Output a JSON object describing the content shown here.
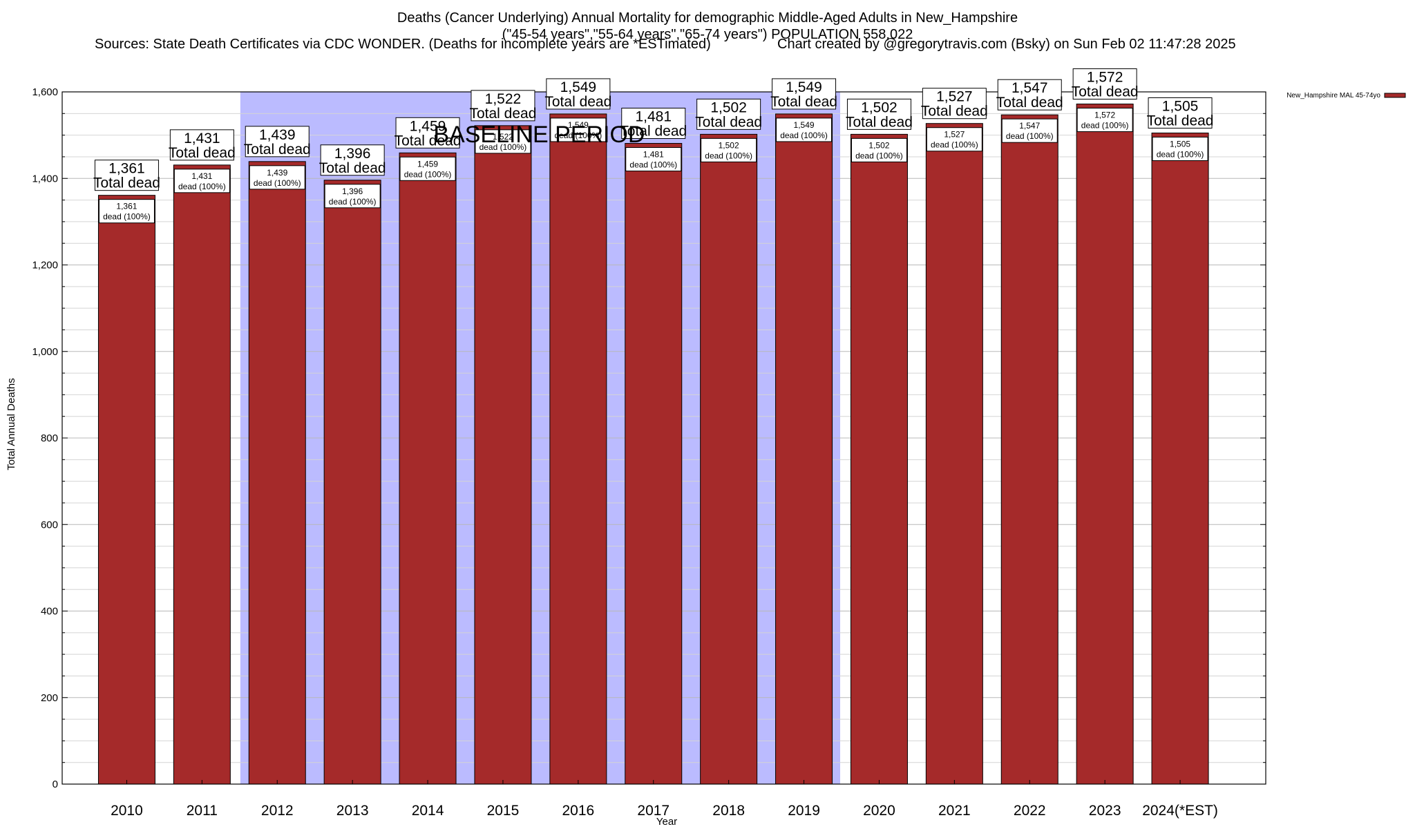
{
  "header": {
    "title_line1": "Deaths (Cancer Underlying) Annual Mortality for demographic Middle-Aged Adults in New_Hampshire",
    "title_line2": "(\"45-54 years\",\"55-64 years\",\"65-74 years\") POPULATION 558,022",
    "sources": "Sources: State Death Certificates via CDC WONDER. (Deaths for incomplete years are *ESTimated)",
    "credit": "Chart created by @gregorytravis.com (Bsky) on Sun Feb 02 11:47:28 2025"
  },
  "chart_data": {
    "type": "bar",
    "categories": [
      "2010",
      "2011",
      "2012",
      "2013",
      "2014",
      "2015",
      "2016",
      "2017",
      "2018",
      "2019",
      "2020",
      "2021",
      "2022",
      "2023",
      "2024(*EST)"
    ],
    "series": [
      {
        "name": "New_Hampshire MAL 45-74yo",
        "color": "#a52a2a",
        "values": [
          1361,
          1431,
          1439,
          1396,
          1459,
          1522,
          1549,
          1481,
          1502,
          1549,
          1502,
          1527,
          1547,
          1572,
          1505
        ]
      }
    ],
    "top_labels": [
      "1,361",
      "1,431",
      "1,439",
      "1,396",
      "1,459",
      "1,522",
      "1,549",
      "1,481",
      "1,502",
      "1,549",
      "1,502",
      "1,527",
      "1,547",
      "1,572",
      "1,505"
    ],
    "top_label_suffix": "Total dead",
    "inner_label_suffix": "dead (100%)",
    "xlabel": "Year",
    "ylabel": "Total Annual Deaths",
    "ylim": [
      0,
      1600
    ],
    "yticks": [
      0,
      200,
      400,
      600,
      800,
      1000,
      1200,
      1400,
      1600
    ],
    "ytick_labels": [
      "0",
      "200",
      "400",
      "600",
      "800",
      "1,000",
      "1,200",
      "1,400",
      "1,600"
    ],
    "baseline_band": {
      "label": "BASELINE PERIOD",
      "from": "2012",
      "to": "2019",
      "color": "#bbbbff"
    },
    "grid": true,
    "legend_position": "top-right"
  }
}
